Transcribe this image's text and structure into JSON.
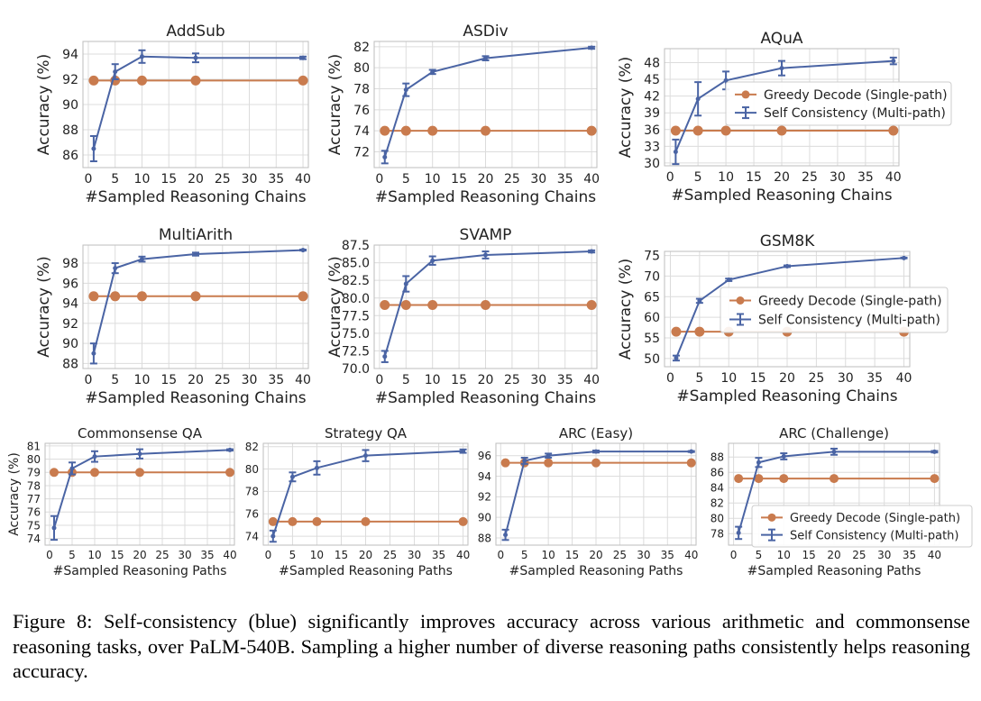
{
  "caption": "Figure 8: Self-consistency (blue) significantly improves accuracy across various arithmetic and commonsense reasoning tasks, over PaLM-540B. Sampling a higher number of diverse reasoning paths consistently helps reasoning accuracy.",
  "colors": {
    "greedy": "#c97b4e",
    "sc": "#4a64a4",
    "grid": "#dcdcdc",
    "frame": "#bdbdbd"
  },
  "legend": {
    "greedy": "Greedy Decode (Single-path)",
    "sc": "Self Consistency (Multi-path)"
  },
  "chart_data": [
    {
      "type": "line",
      "title": "AddSub",
      "xlabel": "#Sampled Reasoning Chains",
      "ylabel": "Accuracy (%)",
      "x": [
        1,
        5,
        10,
        20,
        40
      ],
      "xlim": [
        -1,
        41
      ],
      "ylim": [
        85,
        95
      ],
      "xticks": [
        "0",
        "5",
        "10",
        "15",
        "20",
        "25",
        "30",
        "35",
        "40"
      ],
      "yticks": [
        "86",
        "88",
        "90",
        "92",
        "94"
      ],
      "series": [
        {
          "name": "Greedy Decode (Single-path)",
          "values": [
            91.9,
            91.9,
            91.9,
            91.9,
            91.9
          ]
        },
        {
          "name": "Self Consistency (Multi-path)",
          "values": [
            86.5,
            92.6,
            93.8,
            93.7,
            93.7
          ],
          "err": [
            1.0,
            0.6,
            0.5,
            0.35,
            0.1
          ]
        }
      ]
    },
    {
      "type": "line",
      "title": "ASDiv",
      "xlabel": "#Sampled Reasoning Chains",
      "ylabel": "Accuracy (%)",
      "x": [
        1,
        5,
        10,
        20,
        40
      ],
      "xlim": [
        -1,
        41
      ],
      "ylim": [
        70.5,
        82.5
      ],
      "xticks": [
        "0",
        "5",
        "10",
        "15",
        "20",
        "25",
        "30",
        "35",
        "40"
      ],
      "yticks": [
        "72",
        "74",
        "76",
        "78",
        "80",
        "82"
      ],
      "series": [
        {
          "name": "Greedy Decode (Single-path)",
          "values": [
            74.0,
            74.0,
            74.0,
            74.0,
            74.0
          ]
        },
        {
          "name": "Self Consistency (Multi-path)",
          "values": [
            71.5,
            77.9,
            79.6,
            80.9,
            81.9
          ],
          "err": [
            0.6,
            0.6,
            0.2,
            0.2,
            0.1
          ]
        }
      ]
    },
    {
      "type": "line",
      "title": "AQuA",
      "xlabel": "#Sampled Reasoning Chains",
      "ylabel": "Accuracy (%)",
      "x": [
        1,
        5,
        10,
        20,
        40
      ],
      "xlim": [
        -1,
        41
      ],
      "ylim": [
        29.5,
        50.5
      ],
      "xticks": [
        "0",
        "5",
        "10",
        "15",
        "20",
        "25",
        "30",
        "35",
        "40"
      ],
      "yticks": [
        "30",
        "33",
        "36",
        "39",
        "42",
        "45",
        "48"
      ],
      "legend_pos": "middle-right",
      "series": [
        {
          "name": "Greedy Decode (Single-path)",
          "values": [
            35.8,
            35.8,
            35.8,
            35.8,
            35.8
          ]
        },
        {
          "name": "Self Consistency (Multi-path)",
          "values": [
            32.0,
            41.5,
            44.8,
            47.0,
            48.3
          ],
          "err": [
            2.2,
            3.0,
            1.6,
            1.3,
            0.6
          ]
        }
      ]
    },
    {
      "type": "line",
      "title": "MultiArith",
      "xlabel": "#Sampled Reasoning Chains",
      "ylabel": "Accuracy (%)",
      "x": [
        1,
        5,
        10,
        20,
        40
      ],
      "xlim": [
        -1,
        41
      ],
      "ylim": [
        87.5,
        99.8
      ],
      "xticks": [
        "0",
        "5",
        "10",
        "15",
        "20",
        "25",
        "30",
        "35",
        "40"
      ],
      "yticks": [
        "88",
        "90",
        "92",
        "94",
        "96",
        "98"
      ],
      "series": [
        {
          "name": "Greedy Decode (Single-path)",
          "values": [
            94.7,
            94.7,
            94.7,
            94.7,
            94.7
          ]
        },
        {
          "name": "Self Consistency (Multi-path)",
          "values": [
            89.0,
            97.5,
            98.4,
            98.9,
            99.3
          ],
          "err": [
            1.0,
            0.5,
            0.25,
            0.15,
            0.05
          ]
        }
      ]
    },
    {
      "type": "line",
      "title": "SVAMP",
      "xlabel": "#Sampled Reasoning Chains",
      "ylabel": "Accuracy (%)",
      "x": [
        1,
        5,
        10,
        20,
        40
      ],
      "xlim": [
        -1,
        41
      ],
      "ylim": [
        70,
        87.5
      ],
      "xticks": [
        "0",
        "5",
        "10",
        "15",
        "20",
        "25",
        "30",
        "35",
        "40"
      ],
      "yticks": [
        "70.0",
        "72.5",
        "75.0",
        "77.5",
        "80.0",
        "82.5",
        "85.0",
        "87.5"
      ],
      "series": [
        {
          "name": "Greedy Decode (Single-path)",
          "values": [
            79.0,
            79.0,
            79.0,
            79.0,
            79.0
          ]
        },
        {
          "name": "Self Consistency (Multi-path)",
          "values": [
            71.7,
            82.0,
            85.3,
            86.1,
            86.6
          ],
          "err": [
            0.8,
            1.1,
            0.6,
            0.5,
            0.15
          ]
        }
      ]
    },
    {
      "type": "line",
      "title": "GSM8K",
      "xlabel": "#Sampled Reasoning Chains",
      "ylabel": "Accuracy (%)",
      "x": [
        1,
        5,
        10,
        20,
        40
      ],
      "xlim": [
        -1,
        41
      ],
      "ylim": [
        48,
        76
      ],
      "xticks": [
        "0",
        "5",
        "10",
        "15",
        "20",
        "25",
        "30",
        "35",
        "40"
      ],
      "yticks": [
        "50",
        "55",
        "60",
        "65",
        "70",
        "75"
      ],
      "legend_pos": "middle-right",
      "series": [
        {
          "name": "Greedy Decode (Single-path)",
          "values": [
            56.5,
            56.5,
            56.5,
            56.5,
            56.5
          ]
        },
        {
          "name": "Self Consistency (Multi-path)",
          "values": [
            50.1,
            64.0,
            69.1,
            72.4,
            74.4
          ],
          "err": [
            0.6,
            0.5,
            0.3,
            0.2,
            0.1
          ]
        }
      ]
    },
    {
      "type": "line",
      "title": "Commonsense QA",
      "xlabel": "#Sampled Reasoning Paths",
      "ylabel": "Accuracy (%)",
      "x": [
        1,
        5,
        10,
        20,
        40
      ],
      "xlim": [
        -1,
        41
      ],
      "ylim": [
        73.5,
        81.2
      ],
      "xticks": [
        "0",
        "5",
        "10",
        "15",
        "20",
        "25",
        "30",
        "35",
        "40"
      ],
      "yticks": [
        "74",
        "75",
        "76",
        "77",
        "78",
        "79",
        "80",
        "81"
      ],
      "series": [
        {
          "name": "Greedy Decode (Single-path)",
          "values": [
            79.0,
            79.0,
            79.0,
            79.0,
            79.0
          ]
        },
        {
          "name": "Self Consistency (Multi-path)",
          "values": [
            74.8,
            79.3,
            80.2,
            80.4,
            80.7
          ],
          "err": [
            0.9,
            0.45,
            0.4,
            0.35,
            0.05
          ]
        }
      ]
    },
    {
      "type": "line",
      "title": "Strategy QA",
      "xlabel": "#Sampled Reasoning Paths",
      "ylabel": "",
      "x": [
        1,
        5,
        10,
        20,
        40
      ],
      "xlim": [
        -1,
        41
      ],
      "ylim": [
        73.2,
        82.3
      ],
      "xticks": [
        "0",
        "5",
        "10",
        "15",
        "20",
        "25",
        "30",
        "35",
        "40"
      ],
      "yticks": [
        "74",
        "76",
        "78",
        "80",
        "82"
      ],
      "series": [
        {
          "name": "Greedy Decode (Single-path)",
          "values": [
            75.3,
            75.3,
            75.3,
            75.3,
            75.3
          ]
        },
        {
          "name": "Self Consistency (Multi-path)",
          "values": [
            74.0,
            79.3,
            80.1,
            81.2,
            81.6
          ],
          "err": [
            0.5,
            0.4,
            0.6,
            0.5,
            0.15
          ]
        }
      ]
    },
    {
      "type": "line",
      "title": "ARC (Easy)",
      "xlabel": "#Sampled Reasoning Paths",
      "ylabel": "",
      "x": [
        1,
        5,
        10,
        20,
        40
      ],
      "xlim": [
        -1,
        41
      ],
      "ylim": [
        87.3,
        97.2
      ],
      "xticks": [
        "0",
        "5",
        "10",
        "15",
        "20",
        "25",
        "30",
        "35",
        "40"
      ],
      "yticks": [
        "88",
        "90",
        "92",
        "94",
        "96"
      ],
      "series": [
        {
          "name": "Greedy Decode (Single-path)",
          "values": [
            95.3,
            95.3,
            95.3,
            95.3,
            95.3
          ]
        },
        {
          "name": "Self Consistency (Multi-path)",
          "values": [
            88.3,
            95.5,
            96.0,
            96.4,
            96.4
          ],
          "err": [
            0.5,
            0.3,
            0.2,
            0.1,
            0.05
          ]
        }
      ]
    },
    {
      "type": "line",
      "title": "ARC (Challenge)",
      "xlabel": "#Sampled Reasoning Paths",
      "ylabel": "",
      "x": [
        1,
        5,
        10,
        20,
        40
      ],
      "xlim": [
        -1,
        41
      ],
      "ylim": [
        76.5,
        89.8
      ],
      "xticks": [
        "0",
        "5",
        "10",
        "15",
        "20",
        "25",
        "30",
        "35",
        "40"
      ],
      "yticks": [
        "78",
        "80",
        "82",
        "84",
        "86",
        "88"
      ],
      "legend_pos": "lower-right",
      "series": [
        {
          "name": "Greedy Decode (Single-path)",
          "values": [
            85.2,
            85.2,
            85.2,
            85.2,
            85.2
          ]
        },
        {
          "name": "Self Consistency (Multi-path)",
          "values": [
            78.1,
            87.3,
            88.1,
            88.7,
            88.7
          ],
          "err": [
            0.8,
            0.6,
            0.4,
            0.4,
            0.1
          ]
        }
      ]
    }
  ]
}
